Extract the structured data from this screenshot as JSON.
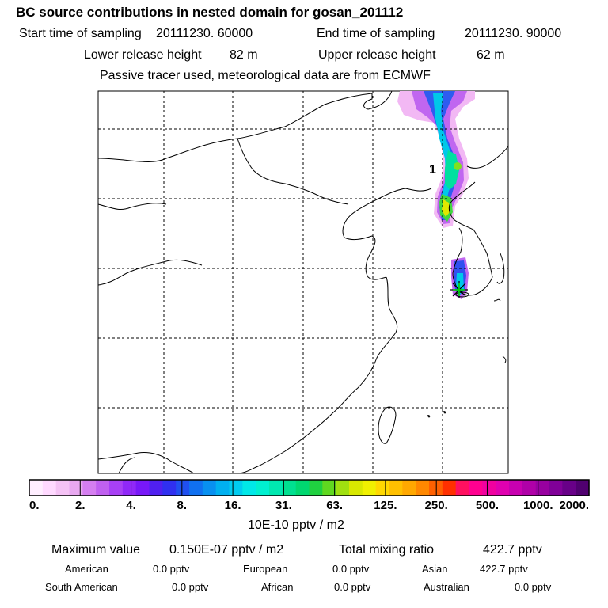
{
  "header": {
    "title": "BC  source contributions in nested domain for gosan_201112",
    "start_label": "Start time of sampling",
    "start_value": "20111230. 60000",
    "end_label": "End time of sampling",
    "end_value": "20111230. 90000",
    "lower_label": "Lower release height",
    "lower_value": "82 m",
    "upper_label": "Upper release height",
    "upper_value": "62 m",
    "note": "Passive tracer used, meteorological data are from ECMWF"
  },
  "map": {
    "plume_label": "1"
  },
  "chart_data": {
    "type": "heatmap",
    "title": "BC  source contributions in nested domain for gosan_201112",
    "units": "10E-10 pptv / m2",
    "colorbar_ticks": [
      "0.",
      "2.",
      "4.",
      "8.",
      "16.",
      "31.",
      "63.",
      "125.",
      "250.",
      "500.",
      "1000.",
      "2000."
    ],
    "colorbar_colors": [
      "#ffeeff",
      "#ffd9ff",
      "#f5c2f5",
      "#e8a8f0",
      "#d57ef0",
      "#c060f0",
      "#a840f5",
      "#9028f8",
      "#7818f8",
      "#5020f0",
      "#3030f0",
      "#2050f0",
      "#1070f0",
      "#0890f0",
      "#00b0f0",
      "#00ccf0",
      "#00e8e8",
      "#00f0d0",
      "#00e8b0",
      "#00e090",
      "#00d870",
      "#20d040",
      "#60d820",
      "#a0e010",
      "#d8e800",
      "#f0f000",
      "#ffd800",
      "#ffc000",
      "#ffa800",
      "#ff8800",
      "#ff6000",
      "#ff3000",
      "#ff1060",
      "#ff0090",
      "#f000a0",
      "#e000b0",
      "#c800b0",
      "#b000a8",
      "#9800a0",
      "#800098",
      "#680088",
      "#500070"
    ],
    "receptor": "gosan",
    "grid": true
  },
  "stats": {
    "max_label": "Maximum value",
    "max_value": "0.150E-07 pptv / m2",
    "total_label": "Total mixing ratio",
    "total_value": "422.7 pptv",
    "regions": [
      {
        "name": "American",
        "value": "0.0 pptv"
      },
      {
        "name": "European",
        "value": "0.0 pptv"
      },
      {
        "name": "Asian",
        "value": "422.7 pptv"
      },
      {
        "name": "South American",
        "value": "0.0 pptv"
      },
      {
        "name": "African",
        "value": "0.0 pptv"
      },
      {
        "name": "Australian",
        "value": "0.0 pptv"
      }
    ]
  }
}
